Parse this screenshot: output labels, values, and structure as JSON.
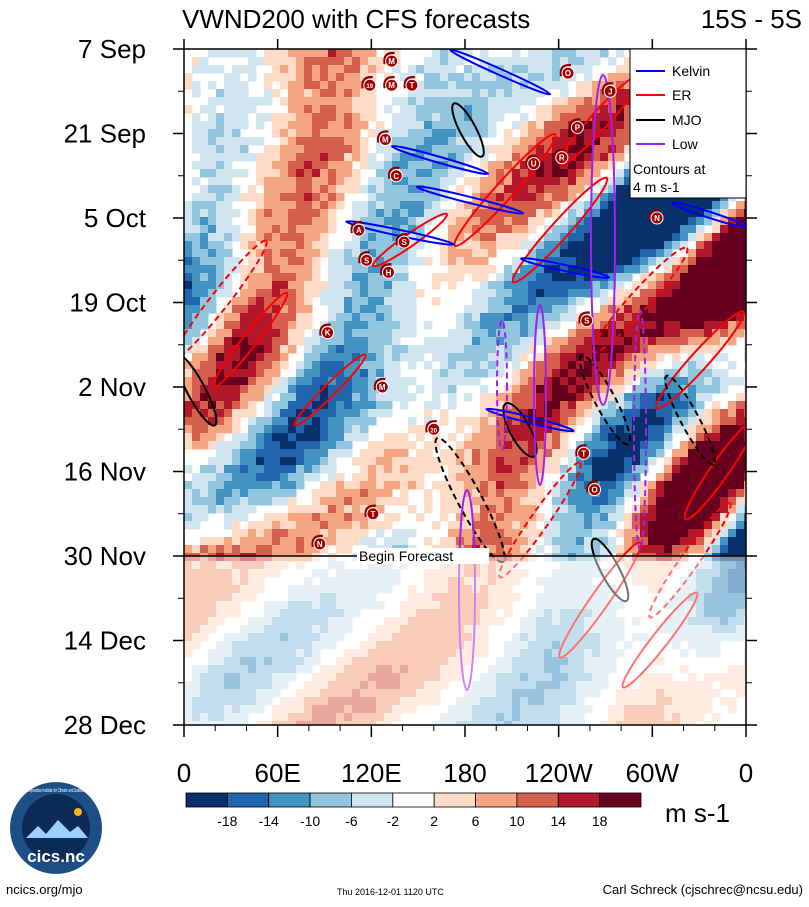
{
  "chart_data": {
    "type": "heatmap",
    "title_left": "VWND200 with CFS forecasts",
    "title_right": "15S - 5S",
    "y_ticks": [
      "7 Sep",
      "21 Sep",
      "5 Oct",
      "19 Oct",
      "2 Nov",
      "16 Nov",
      "30 Nov",
      "14 Dec",
      "28 Dec"
    ],
    "x_ticks": [
      "0",
      "60E",
      "120E",
      "180",
      "120W",
      "60W",
      "0"
    ],
    "forecast_label": "Begin Forecast",
    "legend": {
      "entries": [
        {
          "name": "Kelvin",
          "color": "#0000ff"
        },
        {
          "name": "ER",
          "color": "#ff0000"
        },
        {
          "name": "MJO",
          "color": "#000000"
        },
        {
          "name": "Low",
          "color": "#a020f0"
        }
      ],
      "note_line1": "Contours at",
      "note_line2": "4 m s-1"
    },
    "colorbar": {
      "colors": [
        "#08306b",
        "#2166ac",
        "#4393c3",
        "#92c5de",
        "#d1e5f0",
        "#ffffff",
        "#fddbc7",
        "#f4a582",
        "#d6604d",
        "#b2182b",
        "#67001f"
      ],
      "labels": [
        "-18",
        "-14",
        "-10",
        "-6",
        "-2",
        "2",
        "6",
        "10",
        "14",
        "18"
      ],
      "units": "m s-1"
    },
    "storms": [
      {
        "letter": "M",
        "lon": 133,
        "day": 2
      },
      {
        "letter": "19",
        "lon": 119,
        "day": 6
      },
      {
        "letter": "M",
        "lon": 133,
        "day": 6
      },
      {
        "letter": "T",
        "lon": 146,
        "day": 6
      },
      {
        "letter": "O",
        "lon": 246,
        "day": 4
      },
      {
        "letter": "J",
        "lon": 273,
        "day": 7
      },
      {
        "letter": "P",
        "lon": 252,
        "day": 13
      },
      {
        "letter": "M",
        "lon": 129,
        "day": 15
      },
      {
        "letter": "R",
        "lon": 242,
        "day": 18
      },
      {
        "letter": "U",
        "lon": 224,
        "day": 19
      },
      {
        "letter": "C",
        "lon": 136,
        "day": 21
      },
      {
        "letter": "N",
        "lon": 303,
        "day": 28
      },
      {
        "letter": "A",
        "lon": 112,
        "day": 30
      },
      {
        "letter": "S",
        "lon": 141,
        "day": 32
      },
      {
        "letter": "S",
        "lon": 117,
        "day": 35
      },
      {
        "letter": "H",
        "lon": 131,
        "day": 37
      },
      {
        "letter": "S",
        "lon": 258,
        "day": 45
      },
      {
        "letter": "K",
        "lon": 92,
        "day": 47
      },
      {
        "letter": "M",
        "lon": 127,
        "day": 56
      },
      {
        "letter": "20",
        "lon": 160,
        "day": 63
      },
      {
        "letter": "T",
        "lon": 256,
        "day": 67
      },
      {
        "letter": "O",
        "lon": 263,
        "day": 73
      },
      {
        "letter": "T",
        "lon": 121,
        "day": 77
      },
      {
        "letter": "N",
        "lon": 87,
        "day": 82
      }
    ]
  },
  "footer": {
    "left": "ncics.org/mjo",
    "middle": "Thu 2016-12-01 1120 UTC",
    "right": "Carl Schreck (cjschrec@ncsu.edu)"
  },
  "logo": {
    "text": "cics.nc",
    "ring_text": "Cooperative Institute for Climate and Satellites"
  }
}
